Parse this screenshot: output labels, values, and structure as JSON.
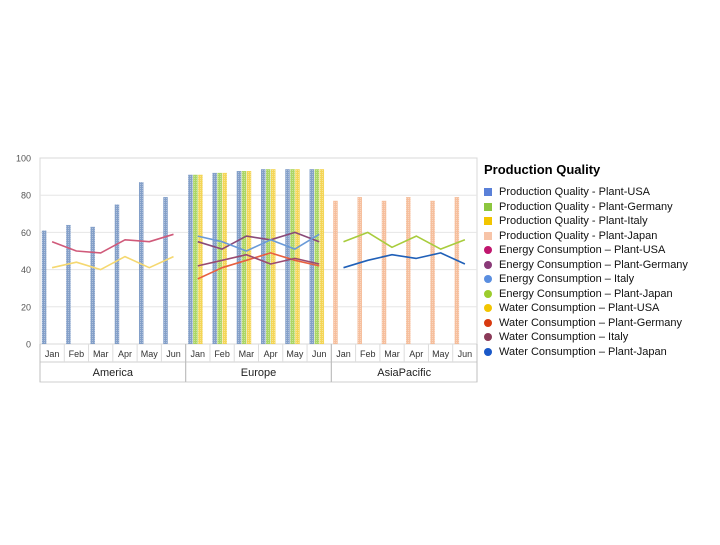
{
  "chart_data": {
    "type": "bar",
    "title": "Production Quality",
    "ylim": [
      0,
      100
    ],
    "yticks": [
      0,
      20,
      40,
      60,
      80,
      100
    ],
    "groups": [
      {
        "name": "America",
        "categories": [
          "Jan",
          "Feb",
          "Mar",
          "Apr",
          "May",
          "Jun"
        ]
      },
      {
        "name": "Europe",
        "categories": [
          "Jan",
          "Feb",
          "Mar",
          "Apr",
          "May",
          "Jun"
        ]
      },
      {
        "name": "AsiaPacific",
        "categories": [
          "Jan",
          "Feb",
          "Mar",
          "Apr",
          "May",
          "Jun"
        ]
      }
    ],
    "bar_series": [
      {
        "name": "Production Quality - Plant-USA",
        "color": "#6f8fc0",
        "values": [
          [
            61,
            64,
            63,
            75,
            87,
            79
          ],
          [
            91,
            92,
            93,
            94,
            94,
            94
          ],
          [
            null,
            null,
            null,
            null,
            null,
            null
          ]
        ]
      },
      {
        "name": "Production Quality - Plant-Germany",
        "color": "#9ccf4a",
        "values": [
          [
            null,
            null,
            null,
            null,
            null,
            null
          ],
          [
            91,
            92,
            93,
            94,
            94,
            94
          ],
          [
            null,
            null,
            null,
            null,
            null,
            null
          ]
        ]
      },
      {
        "name": "Production Quality  - Plant-Italy",
        "color": "#f2cf3a",
        "values": [
          [
            null,
            null,
            null,
            null,
            null,
            null
          ],
          [
            91,
            92,
            93,
            94,
            94,
            94
          ],
          [
            null,
            null,
            null,
            null,
            null,
            null
          ]
        ]
      },
      {
        "name": "Production Quality - Plant-Japan",
        "color": "#f4b48c",
        "values": [
          [
            null,
            null,
            null,
            null,
            null,
            null
          ],
          [
            null,
            null,
            null,
            null,
            null,
            null
          ],
          [
            77,
            79,
            77,
            79,
            77,
            79
          ]
        ]
      }
    ],
    "line_series": [
      {
        "name": "Energy Consumption – Plant-USA",
        "color": "#d05a7a",
        "values": [
          [
            55,
            50,
            49,
            56,
            55,
            59
          ],
          [
            null,
            null,
            null,
            null,
            null,
            null
          ],
          [
            null,
            null,
            null,
            null,
            null,
            null
          ]
        ]
      },
      {
        "name": "Energy Consumption – Plant-Germany",
        "color": "#8a4a78",
        "values": [
          [
            null,
            null,
            null,
            null,
            null,
            null
          ],
          [
            55,
            51,
            58,
            56,
            60,
            55
          ],
          [
            null,
            null,
            null,
            null,
            null,
            null
          ]
        ]
      },
      {
        "name": "Energy Consumption – Italy",
        "color": "#6a9ad8",
        "values": [
          [
            null,
            null,
            null,
            null,
            null,
            null
          ],
          [
            58,
            55,
            50,
            56,
            51,
            59
          ],
          [
            null,
            null,
            null,
            null,
            null,
            null
          ]
        ]
      },
      {
        "name": "Energy Consumption – Plant-Japan",
        "color": "#a8cc3c",
        "values": [
          [
            null,
            null,
            null,
            null,
            null,
            null
          ],
          [
            null,
            null,
            null,
            null,
            null,
            null
          ],
          [
            55,
            60,
            52,
            58,
            51,
            56
          ]
        ]
      },
      {
        "name": "Water Consumption – Plant-USA",
        "color": "#f5d870",
        "values": [
          [
            41,
            44,
            40,
            47,
            41,
            47
          ],
          [
            null,
            null,
            null,
            null,
            null,
            null
          ],
          [
            null,
            null,
            null,
            null,
            null,
            null
          ]
        ]
      },
      {
        "name": "Water Consumption – Plant-Germany",
        "color": "#e86040",
        "values": [
          [
            null,
            null,
            null,
            null,
            null,
            null
          ],
          [
            35,
            41,
            45,
            49,
            45,
            42
          ],
          [
            null,
            null,
            null,
            null,
            null,
            null
          ]
        ]
      },
      {
        "name": "Water Consumption – Italy",
        "color": "#9a4a70",
        "values": [
          [
            null,
            null,
            null,
            null,
            null,
            null
          ],
          [
            42,
            45,
            48,
            43,
            46,
            43
          ],
          [
            null,
            null,
            null,
            null,
            null,
            null
          ]
        ]
      },
      {
        "name": "Water Consumption – Plant-Japan",
        "color": "#2060b8",
        "values": [
          [
            null,
            null,
            null,
            null,
            null,
            null
          ],
          [
            null,
            null,
            null,
            null,
            null,
            null
          ],
          [
            41,
            45,
            48,
            46,
            49,
            43
          ]
        ]
      }
    ]
  },
  "legend": {
    "title": "Production Quality",
    "items": [
      {
        "label": "Production Quality - Plant-USA",
        "color": "#5a80d8",
        "shape": "square"
      },
      {
        "label": "Production Quality - Plant-Germany",
        "color": "#8cc63f",
        "shape": "square"
      },
      {
        "label": "Production Quality  - Plant-Italy",
        "color": "#f2c500",
        "shape": "square"
      },
      {
        "label": "Production Quality - Plant-Japan",
        "color": "#f7c4a8",
        "shape": "square"
      },
      {
        "label": "Energy Consumption – Plant-USA",
        "color": "#c0166e",
        "shape": "circle"
      },
      {
        "label": "Energy Consumption – Plant-Germany",
        "color": "#8a3a78",
        "shape": "circle"
      },
      {
        "label": "Energy Consumption – Italy",
        "color": "#5a8ee0",
        "shape": "circle"
      },
      {
        "label": "Energy Consumption – Plant-Japan",
        "color": "#9ccc2c",
        "shape": "circle"
      },
      {
        "label": "Water Consumption – Plant-USA",
        "color": "#f2c500",
        "shape": "circle"
      },
      {
        "label": "Water Consumption – Plant-Germany",
        "color": "#d83a10",
        "shape": "circle"
      },
      {
        "label": "Water Consumption – Italy",
        "color": "#8a3a58",
        "shape": "circle"
      },
      {
        "label": "Water Consumption – Plant-Japan",
        "color": "#1a58c8",
        "shape": "circle"
      }
    ]
  }
}
